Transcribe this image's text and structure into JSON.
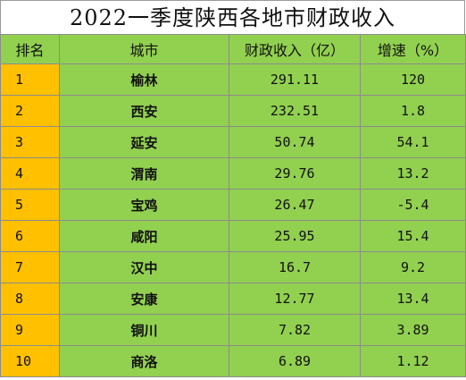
{
  "title": "2022一季度陕西各地市财政收入",
  "table": {
    "headers": [
      "排名",
      "城市",
      "财政收入（亿）",
      "增速（%）"
    ],
    "rows": [
      {
        "rank": "1",
        "city": "榆林",
        "revenue": "291.11",
        "growth": "120"
      },
      {
        "rank": "2",
        "city": "西安",
        "revenue": "232.51",
        "growth": "1.8"
      },
      {
        "rank": "3",
        "city": "延安",
        "revenue": "50.74",
        "growth": "54.1"
      },
      {
        "rank": "4",
        "city": "渭南",
        "revenue": "29.76",
        "growth": "13.2"
      },
      {
        "rank": "5",
        "city": "宝鸡",
        "revenue": "26.47",
        "growth": "-5.4"
      },
      {
        "rank": "6",
        "city": "咸阳",
        "revenue": "25.95",
        "growth": "15.4"
      },
      {
        "rank": "7",
        "city": "汉中",
        "revenue": "16.7",
        "growth": "9.2"
      },
      {
        "rank": "8",
        "city": "安康",
        "revenue": "12.77",
        "growth": "13.4"
      },
      {
        "rank": "9",
        "city": "铜川",
        "revenue": "7.82",
        "growth": "3.89"
      },
      {
        "rank": "10",
        "city": "商洛",
        "revenue": "6.89",
        "growth": "1.12"
      }
    ]
  },
  "colors": {
    "header_bg": "#92d050",
    "row_bg": "#92d050",
    "rank_bg": "#ffc000"
  }
}
